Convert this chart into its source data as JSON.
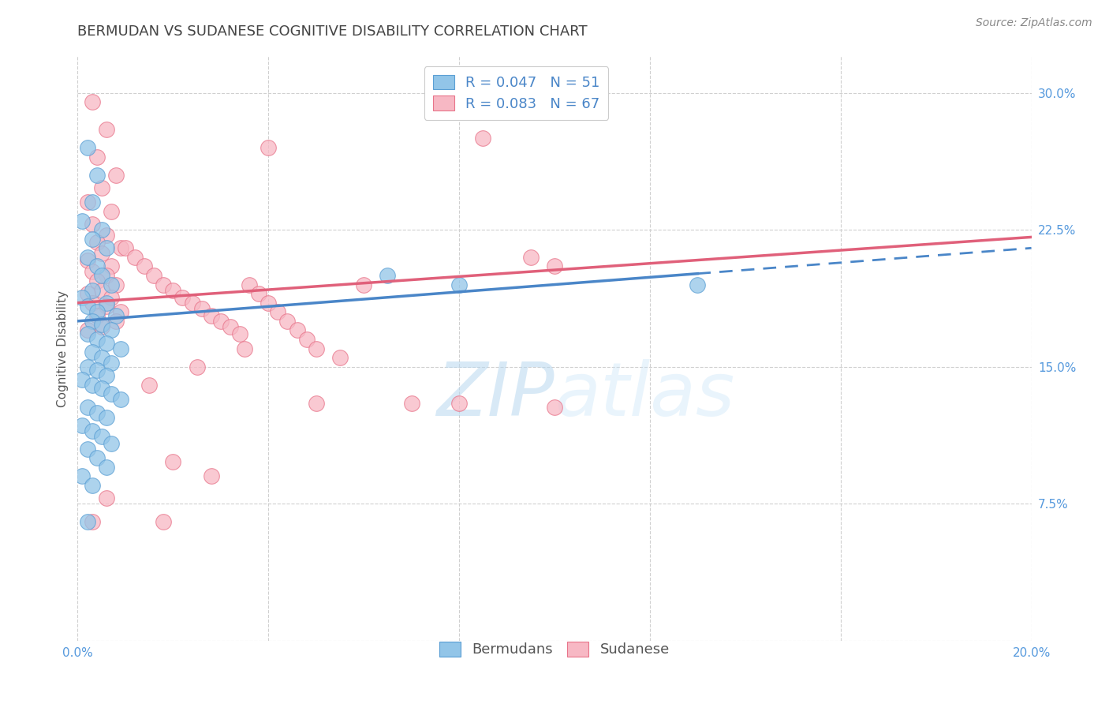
{
  "title": "BERMUDAN VS SUDANESE COGNITIVE DISABILITY CORRELATION CHART",
  "source": "Source: ZipAtlas.com",
  "ylabel": "Cognitive Disability",
  "watermark": "ZIPatlas",
  "xlim": [
    0.0,
    0.2
  ],
  "ylim": [
    0.0,
    0.32
  ],
  "x_ticks": [
    0.0,
    0.04,
    0.08,
    0.12,
    0.16,
    0.2
  ],
  "y_ticks": [
    0.0,
    0.075,
    0.15,
    0.225,
    0.3
  ],
  "blue_R": 0.047,
  "blue_N": 51,
  "pink_R": 0.083,
  "pink_N": 67,
  "blue_color": "#92c5e8",
  "pink_color": "#f7b8c4",
  "blue_edge_color": "#5b9fd4",
  "pink_edge_color": "#e8748a",
  "blue_line_color": "#4a86c8",
  "pink_line_color": "#e0607a",
  "blue_scatter": [
    [
      0.002,
      0.27
    ],
    [
      0.004,
      0.255
    ],
    [
      0.003,
      0.24
    ],
    [
      0.001,
      0.23
    ],
    [
      0.005,
      0.225
    ],
    [
      0.003,
      0.22
    ],
    [
      0.006,
      0.215
    ],
    [
      0.002,
      0.21
    ],
    [
      0.004,
      0.205
    ],
    [
      0.005,
      0.2
    ],
    [
      0.007,
      0.195
    ],
    [
      0.003,
      0.192
    ],
    [
      0.001,
      0.188
    ],
    [
      0.006,
      0.185
    ],
    [
      0.002,
      0.183
    ],
    [
      0.004,
      0.18
    ],
    [
      0.008,
      0.178
    ],
    [
      0.003,
      0.175
    ],
    [
      0.005,
      0.173
    ],
    [
      0.007,
      0.17
    ],
    [
      0.002,
      0.168
    ],
    [
      0.004,
      0.165
    ],
    [
      0.006,
      0.163
    ],
    [
      0.009,
      0.16
    ],
    [
      0.003,
      0.158
    ],
    [
      0.005,
      0.155
    ],
    [
      0.007,
      0.152
    ],
    [
      0.002,
      0.15
    ],
    [
      0.004,
      0.148
    ],
    [
      0.006,
      0.145
    ],
    [
      0.001,
      0.143
    ],
    [
      0.003,
      0.14
    ],
    [
      0.005,
      0.138
    ],
    [
      0.007,
      0.135
    ],
    [
      0.009,
      0.132
    ],
    [
      0.002,
      0.128
    ],
    [
      0.004,
      0.125
    ],
    [
      0.006,
      0.122
    ],
    [
      0.001,
      0.118
    ],
    [
      0.003,
      0.115
    ],
    [
      0.005,
      0.112
    ],
    [
      0.007,
      0.108
    ],
    [
      0.002,
      0.105
    ],
    [
      0.004,
      0.1
    ],
    [
      0.006,
      0.095
    ],
    [
      0.001,
      0.09
    ],
    [
      0.003,
      0.085
    ],
    [
      0.002,
      0.065
    ],
    [
      0.065,
      0.2
    ],
    [
      0.08,
      0.195
    ],
    [
      0.13,
      0.195
    ]
  ],
  "pink_scatter": [
    [
      0.003,
      0.295
    ],
    [
      0.006,
      0.28
    ],
    [
      0.004,
      0.265
    ],
    [
      0.008,
      0.255
    ],
    [
      0.005,
      0.248
    ],
    [
      0.002,
      0.24
    ],
    [
      0.007,
      0.235
    ],
    [
      0.003,
      0.228
    ],
    [
      0.006,
      0.222
    ],
    [
      0.004,
      0.218
    ],
    [
      0.009,
      0.215
    ],
    [
      0.005,
      0.212
    ],
    [
      0.002,
      0.208
    ],
    [
      0.007,
      0.205
    ],
    [
      0.003,
      0.202
    ],
    [
      0.006,
      0.2
    ],
    [
      0.004,
      0.197
    ],
    [
      0.008,
      0.195
    ],
    [
      0.005,
      0.192
    ],
    [
      0.002,
      0.19
    ],
    [
      0.007,
      0.188
    ],
    [
      0.003,
      0.185
    ],
    [
      0.006,
      0.183
    ],
    [
      0.009,
      0.18
    ],
    [
      0.004,
      0.178
    ],
    [
      0.008,
      0.175
    ],
    [
      0.005,
      0.172
    ],
    [
      0.002,
      0.17
    ],
    [
      0.01,
      0.215
    ],
    [
      0.012,
      0.21
    ],
    [
      0.014,
      0.205
    ],
    [
      0.016,
      0.2
    ],
    [
      0.018,
      0.195
    ],
    [
      0.02,
      0.192
    ],
    [
      0.022,
      0.188
    ],
    [
      0.024,
      0.185
    ],
    [
      0.026,
      0.182
    ],
    [
      0.028,
      0.178
    ],
    [
      0.03,
      0.175
    ],
    [
      0.032,
      0.172
    ],
    [
      0.034,
      0.168
    ],
    [
      0.036,
      0.195
    ],
    [
      0.038,
      0.19
    ],
    [
      0.04,
      0.185
    ],
    [
      0.042,
      0.18
    ],
    [
      0.044,
      0.175
    ],
    [
      0.046,
      0.17
    ],
    [
      0.048,
      0.165
    ],
    [
      0.05,
      0.16
    ],
    [
      0.055,
      0.155
    ],
    [
      0.06,
      0.195
    ],
    [
      0.07,
      0.13
    ],
    [
      0.08,
      0.13
    ],
    [
      0.035,
      0.16
    ],
    [
      0.025,
      0.15
    ],
    [
      0.015,
      0.14
    ],
    [
      0.02,
      0.098
    ],
    [
      0.006,
      0.078
    ],
    [
      0.018,
      0.065
    ],
    [
      0.085,
      0.275
    ],
    [
      0.095,
      0.21
    ],
    [
      0.1,
      0.205
    ],
    [
      0.1,
      0.128
    ],
    [
      0.028,
      0.09
    ],
    [
      0.04,
      0.27
    ],
    [
      0.05,
      0.13
    ],
    [
      0.003,
      0.065
    ]
  ],
  "grid_color": "#d0d0d0",
  "background_color": "#ffffff",
  "tick_label_color": "#5599dd",
  "title_fontsize": 13,
  "axis_label_fontsize": 11,
  "tick_fontsize": 11,
  "source_fontsize": 10,
  "legend_fontsize": 13
}
